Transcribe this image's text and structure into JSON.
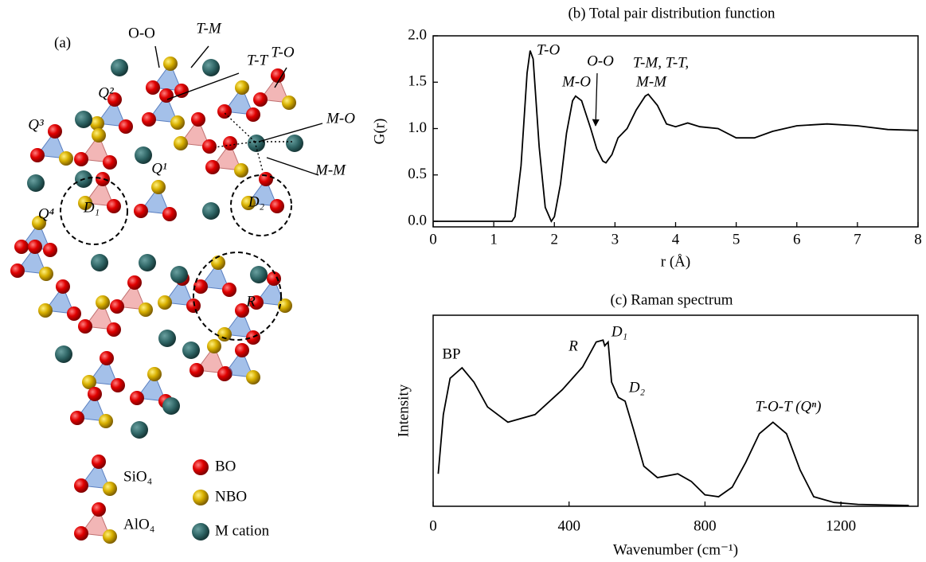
{
  "diagram": {
    "panel_label": "(a)",
    "labels": [
      "O-O",
      "T-M",
      "T-T",
      "T-O",
      "M-O",
      "M-M",
      "Q²",
      "Q³",
      "Q¹",
      "Q⁴",
      "D₁",
      "D₂",
      "R"
    ],
    "legend": [
      "SiO₄",
      "AlO₄",
      "BO",
      "NBO",
      "M cation"
    ]
  },
  "chart_data": [
    {
      "type": "line",
      "title": "(b) Total pair distribution function",
      "x_label": "r (Å)",
      "y_label": "G(r)",
      "x": [
        0,
        1.3,
        1.35,
        1.45,
        1.55,
        1.6,
        1.65,
        1.75,
        1.85,
        1.95,
        2.0,
        2.1,
        2.2,
        2.3,
        2.35,
        2.45,
        2.6,
        2.7,
        2.8,
        2.85,
        2.95,
        3.05,
        3.2,
        3.35,
        3.5,
        3.55,
        3.7,
        3.85,
        4.0,
        4.2,
        4.4,
        4.7,
        5.0,
        5.3,
        5.6,
        6.0,
        6.5,
        7.0,
        7.5,
        8.0
      ],
      "series": [
        {
          "name": "G(r)",
          "color": "#000000",
          "values": [
            0,
            0,
            0.05,
            0.6,
            1.6,
            1.84,
            1.75,
            0.8,
            0.15,
            0.0,
            0.05,
            0.4,
            0.95,
            1.3,
            1.35,
            1.3,
            1.0,
            0.78,
            0.65,
            0.63,
            0.72,
            0.9,
            1.0,
            1.2,
            1.35,
            1.37,
            1.25,
            1.05,
            1.02,
            1.06,
            1.02,
            1.0,
            0.9,
            0.9,
            0.97,
            1.03,
            1.05,
            1.03,
            0.99,
            0.98
          ]
        }
      ],
      "xlim": [
        0,
        8
      ],
      "xticks": [
        0,
        1,
        2,
        3,
        4,
        5,
        6,
        7,
        8
      ],
      "ylim": [
        -0.06,
        2.0
      ],
      "yticks": [
        {
          "value": 0,
          "label": "0.0"
        },
        {
          "value": 0.5,
          "label": "0.5"
        },
        {
          "value": 1,
          "label": "1.0"
        },
        {
          "value": 1.5,
          "label": "1.5"
        },
        {
          "value": 2,
          "label": "2.0"
        }
      ],
      "annotations": [
        "T-O",
        "O-O",
        "M-O",
        "T-M, T-T,",
        "M-M"
      ]
    },
    {
      "type": "line",
      "title": "(c) Raman spectrum",
      "x_label": "Wavenumber (cm⁻¹)",
      "y_label": "Intensity",
      "x": [
        15,
        30,
        50,
        85,
        120,
        160,
        220,
        300,
        380,
        440,
        480,
        500,
        505,
        515,
        525,
        545,
        565,
        590,
        620,
        660,
        720,
        760,
        800,
        840,
        880,
        920,
        960,
        1000,
        1040,
        1080,
        1120,
        1180,
        1250,
        1400
      ],
      "series": [
        {
          "name": "Intensity",
          "color": "#000000",
          "values": [
            0.17,
            0.48,
            0.67,
            0.725,
            0.65,
            0.52,
            0.44,
            0.48,
            0.61,
            0.73,
            0.86,
            0.87,
            0.84,
            0.86,
            0.65,
            0.57,
            0.55,
            0.4,
            0.21,
            0.15,
            0.17,
            0.13,
            0.06,
            0.05,
            0.1,
            0.23,
            0.38,
            0.44,
            0.38,
            0.19,
            0.05,
            0.02,
            0.01,
            0.004
          ]
        }
      ],
      "xlim": [
        0,
        1427
      ],
      "xticks": [
        0,
        400,
        800,
        1200
      ],
      "ylim": [
        0,
        1
      ],
      "annotations": [
        "BP",
        "R",
        "D₁",
        "D₂",
        "T-O-T (Qⁿ)"
      ]
    }
  ]
}
